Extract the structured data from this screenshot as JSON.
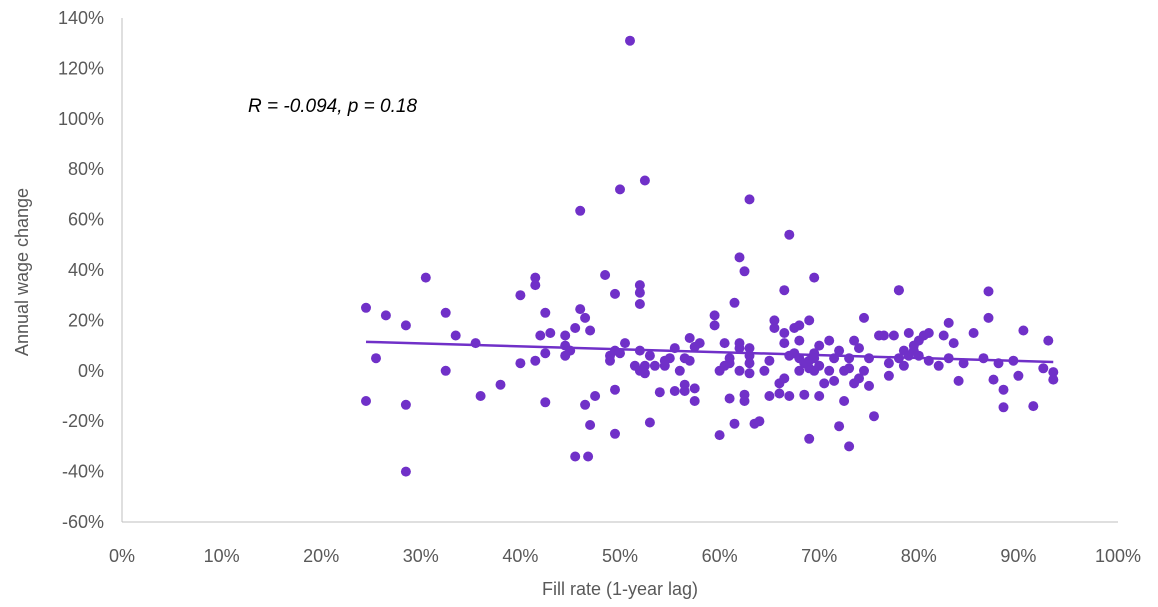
{
  "chart_data": {
    "type": "scatter",
    "xlabel": "Fill rate (1-year lag)",
    "ylabel": "Annual wage change",
    "xlim": [
      0,
      1
    ],
    "ylim": [
      -0.6,
      1.4
    ],
    "x_ticks": [
      0,
      0.1,
      0.2,
      0.3,
      0.4,
      0.5,
      0.6,
      0.7,
      0.8,
      0.9,
      1.0
    ],
    "x_tick_labels": [
      "0%",
      "10%",
      "20%",
      "30%",
      "40%",
      "50%",
      "60%",
      "70%",
      "80%",
      "90%",
      "100%"
    ],
    "y_ticks": [
      1.4,
      1.2,
      1.0,
      0.8,
      0.6,
      0.4,
      0.2,
      0,
      -0.2,
      -0.4,
      -0.6
    ],
    "y_tick_labels": [
      "140%",
      "120%",
      "100%",
      "80%",
      "60%",
      "40%",
      "20%",
      "0%",
      "-20%",
      "-40%",
      "-60%"
    ],
    "grid": false,
    "annotation": "R = -0.094, p = 0.18",
    "colors": {
      "points": "#7030c8",
      "trendline": "#7030c8",
      "axis": "#bfbfbf",
      "text": "#595959"
    },
    "trendline": {
      "x": [
        0.245,
        0.935
      ],
      "y": [
        0.115,
        0.035
      ]
    },
    "points": [
      [
        0.245,
        0.25
      ],
      [
        0.245,
        -0.12
      ],
      [
        0.255,
        0.05
      ],
      [
        0.265,
        0.22
      ],
      [
        0.285,
        0.18
      ],
      [
        0.285,
        -0.135
      ],
      [
        0.285,
        -0.4
      ],
      [
        0.305,
        0.37
      ],
      [
        0.325,
        0.23
      ],
      [
        0.325,
        0.0
      ],
      [
        0.335,
        0.14
      ],
      [
        0.355,
        0.11
      ],
      [
        0.36,
        -0.1
      ],
      [
        0.38,
        -0.055
      ],
      [
        0.4,
        0.3
      ],
      [
        0.4,
        0.03
      ],
      [
        0.415,
        0.34
      ],
      [
        0.415,
        0.37
      ],
      [
        0.415,
        0.04
      ],
      [
        0.42,
        0.14
      ],
      [
        0.425,
        0.23
      ],
      [
        0.425,
        -0.125
      ],
      [
        0.425,
        0.07
      ],
      [
        0.43,
        0.15
      ],
      [
        0.445,
        0.14
      ],
      [
        0.445,
        0.1
      ],
      [
        0.445,
        0.06
      ],
      [
        0.45,
        0.08
      ],
      [
        0.455,
        0.17
      ],
      [
        0.455,
        -0.34
      ],
      [
        0.46,
        0.635
      ],
      [
        0.46,
        0.245
      ],
      [
        0.465,
        0.21
      ],
      [
        0.465,
        -0.135
      ],
      [
        0.468,
        -0.34
      ],
      [
        0.47,
        0.16
      ],
      [
        0.47,
        -0.215
      ],
      [
        0.475,
        -0.1
      ],
      [
        0.485,
        0.38
      ],
      [
        0.49,
        0.04
      ],
      [
        0.49,
        0.06
      ],
      [
        0.495,
        0.305
      ],
      [
        0.495,
        0.08
      ],
      [
        0.495,
        -0.075
      ],
      [
        0.495,
        -0.25
      ],
      [
        0.5,
        0.72
      ],
      [
        0.5,
        0.07
      ],
      [
        0.505,
        0.11
      ],
      [
        0.51,
        1.31
      ],
      [
        0.515,
        0.02
      ],
      [
        0.52,
        0.0
      ],
      [
        0.52,
        0.08
      ],
      [
        0.52,
        0.34
      ],
      [
        0.52,
        0.31
      ],
      [
        0.52,
        0.265
      ],
      [
        0.525,
        0.755
      ],
      [
        0.525,
        0.02
      ],
      [
        0.525,
        -0.01
      ],
      [
        0.53,
        0.06
      ],
      [
        0.53,
        -0.205
      ],
      [
        0.535,
        0.02
      ],
      [
        0.54,
        -0.085
      ],
      [
        0.545,
        0.02
      ],
      [
        0.545,
        0.04
      ],
      [
        0.55,
        0.05
      ],
      [
        0.555,
        0.09
      ],
      [
        0.555,
        -0.08
      ],
      [
        0.56,
        0.0
      ],
      [
        0.565,
        0.05
      ],
      [
        0.565,
        -0.055
      ],
      [
        0.565,
        -0.08
      ],
      [
        0.57,
        0.13
      ],
      [
        0.57,
        0.04
      ],
      [
        0.575,
        0.095
      ],
      [
        0.575,
        -0.07
      ],
      [
        0.575,
        -0.12
      ],
      [
        0.58,
        0.11
      ],
      [
        0.595,
        0.18
      ],
      [
        0.595,
        0.22
      ],
      [
        0.6,
        0.0
      ],
      [
        0.6,
        -0.255
      ],
      [
        0.605,
        0.02
      ],
      [
        0.605,
        0.11
      ],
      [
        0.61,
        0.03
      ],
      [
        0.61,
        0.05
      ],
      [
        0.61,
        -0.11
      ],
      [
        0.615,
        0.27
      ],
      [
        0.615,
        -0.21
      ],
      [
        0.62,
        0.09
      ],
      [
        0.62,
        0.0
      ],
      [
        0.62,
        0.11
      ],
      [
        0.62,
        0.45
      ],
      [
        0.625,
        0.395
      ],
      [
        0.625,
        -0.12
      ],
      [
        0.625,
        -0.095
      ],
      [
        0.63,
        0.06
      ],
      [
        0.63,
        0.09
      ],
      [
        0.63,
        0.03
      ],
      [
        0.63,
        -0.01
      ],
      [
        0.63,
        0.68
      ],
      [
        0.635,
        -0.21
      ],
      [
        0.64,
        -0.2
      ],
      [
        0.645,
        0.0
      ],
      [
        0.65,
        0.04
      ],
      [
        0.65,
        -0.1
      ],
      [
        0.655,
        0.2
      ],
      [
        0.655,
        0.17
      ],
      [
        0.66,
        -0.09
      ],
      [
        0.66,
        -0.05
      ],
      [
        0.665,
        0.11
      ],
      [
        0.665,
        0.15
      ],
      [
        0.665,
        0.32
      ],
      [
        0.665,
        -0.03
      ],
      [
        0.67,
        0.06
      ],
      [
        0.67,
        0.54
      ],
      [
        0.67,
        -0.1
      ],
      [
        0.675,
        0.17
      ],
      [
        0.675,
        0.07
      ],
      [
        0.68,
        0.18
      ],
      [
        0.68,
        0.12
      ],
      [
        0.68,
        0.0
      ],
      [
        0.68,
        0.05
      ],
      [
        0.685,
        0.03
      ],
      [
        0.685,
        -0.095
      ],
      [
        0.69,
        0.2
      ],
      [
        0.69,
        0.01
      ],
      [
        0.69,
        0.04
      ],
      [
        0.69,
        -0.27
      ],
      [
        0.695,
        0.37
      ],
      [
        0.695,
        0.07
      ],
      [
        0.695,
        0.0
      ],
      [
        0.695,
        0.05
      ],
      [
        0.7,
        0.02
      ],
      [
        0.7,
        -0.1
      ],
      [
        0.7,
        0.1
      ],
      [
        0.705,
        -0.05
      ],
      [
        0.71,
        0.12
      ],
      [
        0.71,
        0.0
      ],
      [
        0.715,
        -0.04
      ],
      [
        0.715,
        0.05
      ],
      [
        0.72,
        -0.22
      ],
      [
        0.72,
        0.08
      ],
      [
        0.725,
        0.0
      ],
      [
        0.725,
        -0.12
      ],
      [
        0.73,
        0.01
      ],
      [
        0.73,
        -0.3
      ],
      [
        0.73,
        0.05
      ],
      [
        0.735,
        0.12
      ],
      [
        0.735,
        -0.05
      ],
      [
        0.74,
        0.09
      ],
      [
        0.74,
        -0.03
      ],
      [
        0.745,
        0.0
      ],
      [
        0.745,
        0.21
      ],
      [
        0.75,
        0.05
      ],
      [
        0.75,
        -0.06
      ],
      [
        0.755,
        -0.18
      ],
      [
        0.76,
        0.14
      ],
      [
        0.765,
        0.14
      ],
      [
        0.77,
        0.03
      ],
      [
        0.77,
        -0.02
      ],
      [
        0.775,
        0.14
      ],
      [
        0.78,
        0.32
      ],
      [
        0.78,
        0.32
      ],
      [
        0.78,
        0.05
      ],
      [
        0.785,
        0.02
      ],
      [
        0.785,
        0.08
      ],
      [
        0.79,
        0.15
      ],
      [
        0.79,
        0.06
      ],
      [
        0.795,
        0.1
      ],
      [
        0.795,
        0.08
      ],
      [
        0.8,
        0.06
      ],
      [
        0.8,
        0.12
      ],
      [
        0.805,
        0.14
      ],
      [
        0.81,
        0.15
      ],
      [
        0.81,
        0.04
      ],
      [
        0.82,
        0.02
      ],
      [
        0.825,
        0.14
      ],
      [
        0.83,
        0.05
      ],
      [
        0.83,
        0.19
      ],
      [
        0.835,
        0.11
      ],
      [
        0.84,
        -0.04
      ],
      [
        0.845,
        0.03
      ],
      [
        0.855,
        0.15
      ],
      [
        0.865,
        0.05
      ],
      [
        0.87,
        0.21
      ],
      [
        0.87,
        0.315
      ],
      [
        0.875,
        -0.035
      ],
      [
        0.88,
        0.03
      ],
      [
        0.885,
        -0.075
      ],
      [
        0.885,
        -0.145
      ],
      [
        0.895,
        0.04
      ],
      [
        0.9,
        -0.02
      ],
      [
        0.905,
        0.16
      ],
      [
        0.915,
        -0.14
      ],
      [
        0.925,
        0.01
      ],
      [
        0.93,
        0.12
      ],
      [
        0.935,
        -0.005
      ],
      [
        0.935,
        -0.035
      ]
    ]
  }
}
